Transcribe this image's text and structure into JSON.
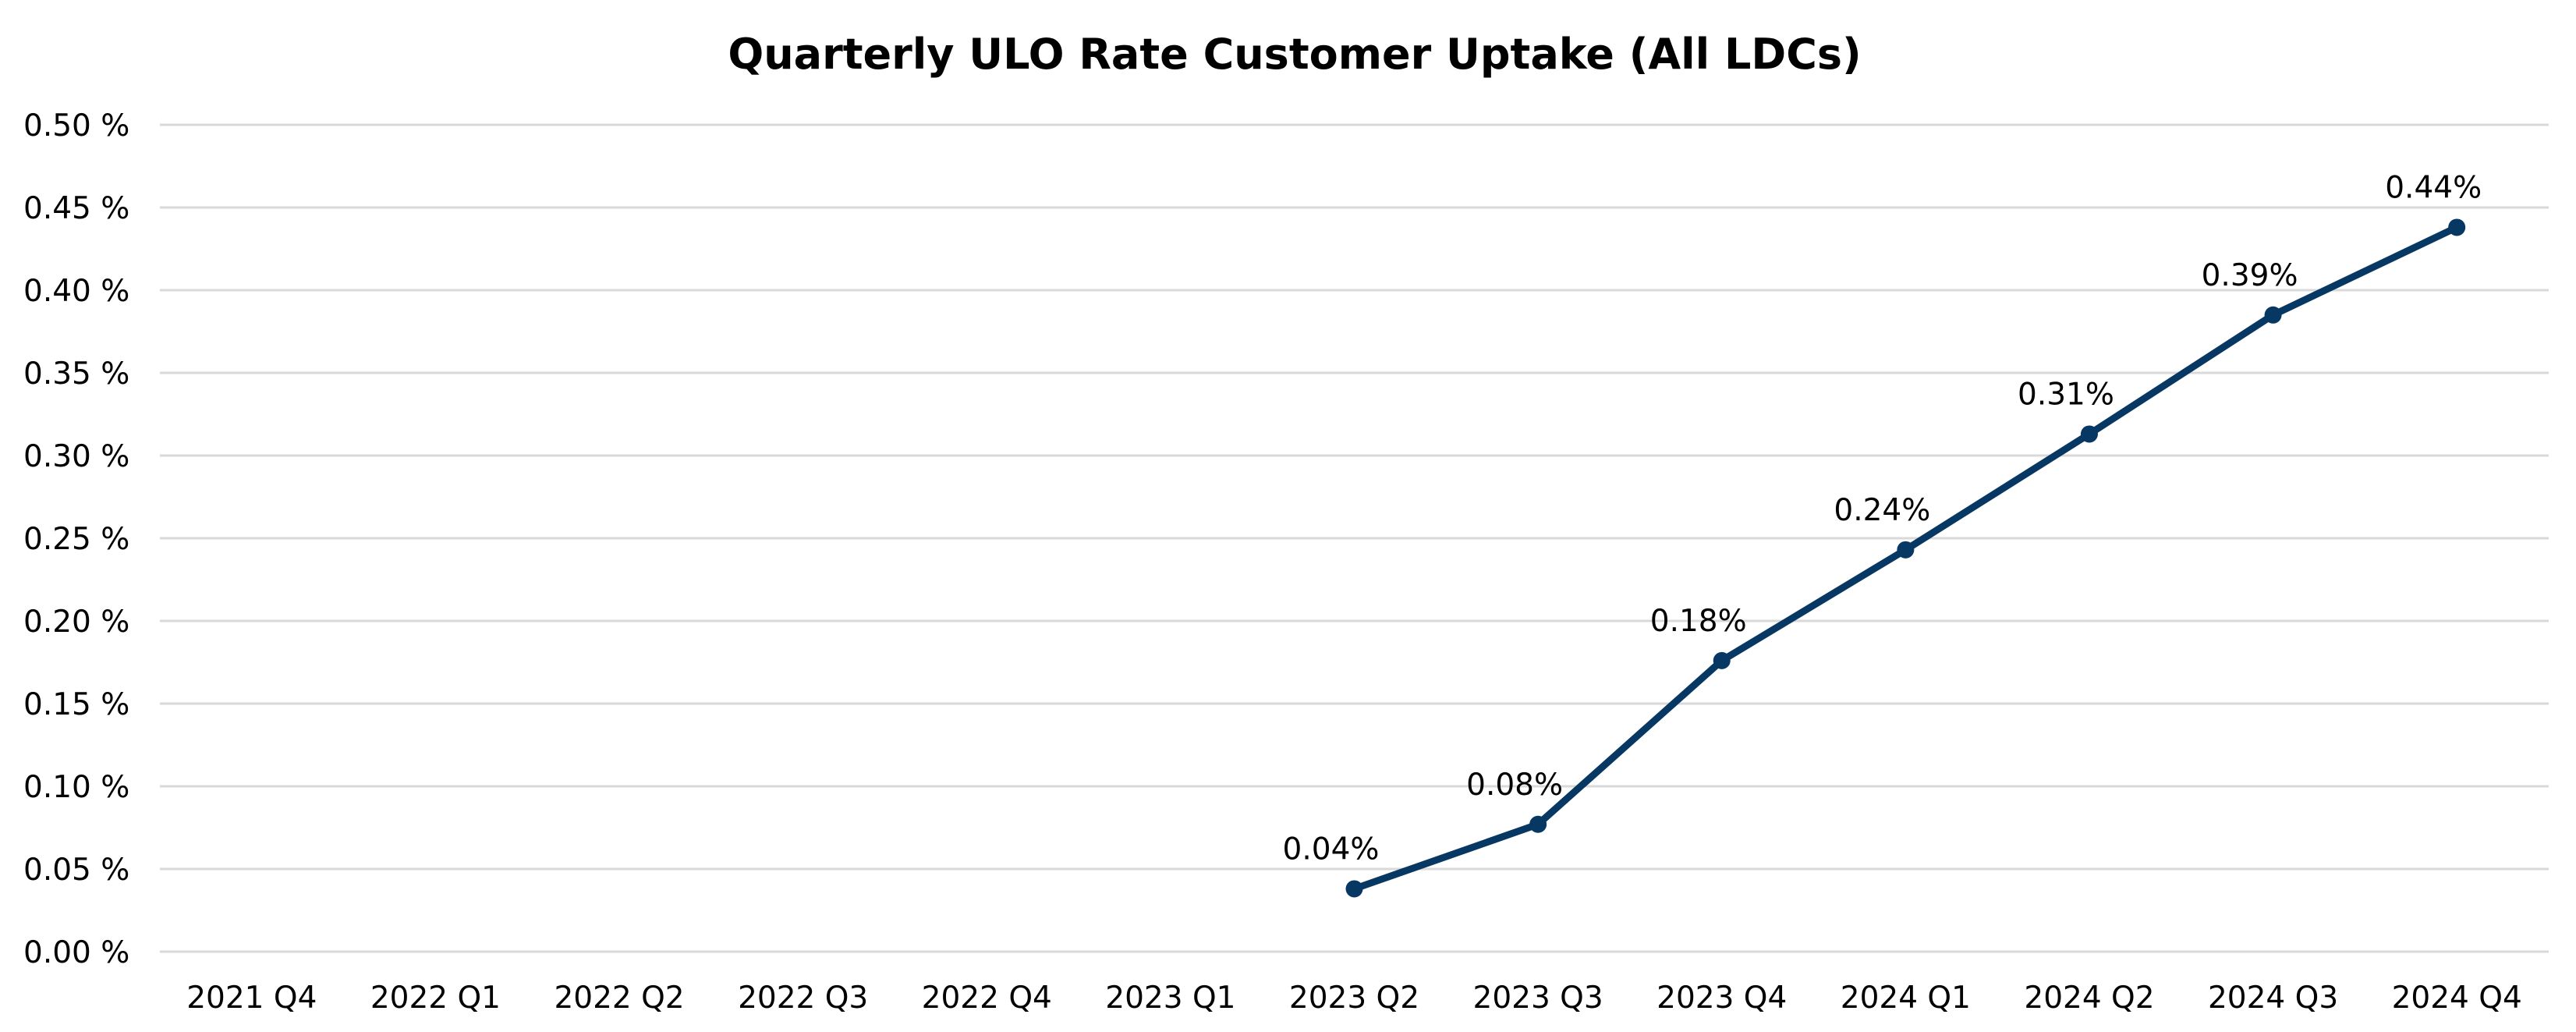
{
  "chart_data": {
    "type": "line",
    "title": "Quarterly ULO Rate Customer Uptake (All LDCs)",
    "xlabel": "",
    "ylabel": "",
    "ylim": [
      0,
      0.5
    ],
    "ytick_step": 0.05,
    "ytick_labels": [
      "0.00 %",
      "0.05 %",
      "0.10 %",
      "0.15 %",
      "0.20 %",
      "0.25 %",
      "0.30 %",
      "0.35 %",
      "0.40 %",
      "0.45 %",
      "0.50 %"
    ],
    "grid": true,
    "legend": "none",
    "categories": [
      "2021 Q4",
      "2022 Q1",
      "2022 Q2",
      "2022 Q3",
      "2022 Q4",
      "2023 Q1",
      "2023 Q2",
      "2023 Q3",
      "2023 Q4",
      "2024 Q1",
      "2024 Q2",
      "2024 Q3",
      "2024 Q4"
    ],
    "series": [
      {
        "name": "ULO Rate Customer Uptake",
        "color": "#073763",
        "values": [
          null,
          null,
          null,
          null,
          null,
          null,
          0.038,
          0.077,
          0.176,
          0.243,
          0.313,
          0.385,
          0.438
        ],
        "data_labels": [
          null,
          null,
          null,
          null,
          null,
          null,
          "0.04%",
          "0.08%",
          "0.18%",
          "0.24%",
          "0.31%",
          "0.39%",
          "0.44%"
        ]
      }
    ]
  }
}
